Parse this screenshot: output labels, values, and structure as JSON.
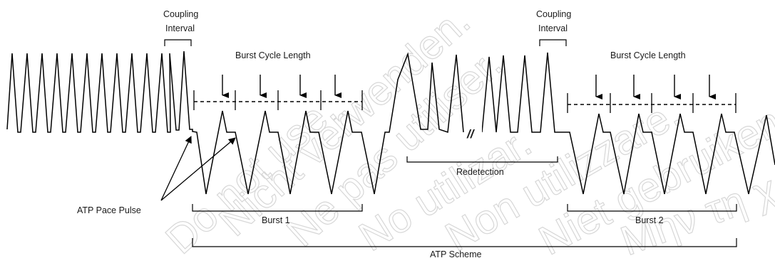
{
  "labels": {
    "coupling_interval_1_line1": "Coupling",
    "coupling_interval_1_line2": "Interval",
    "coupling_interval_2_line1": "Coupling",
    "coupling_interval_2_line2": "Interval",
    "burst_cycle_length_1": "Burst Cycle Length",
    "burst_cycle_length_2": "Burst Cycle Length",
    "atp_pace_pulse": "ATP Pace Pulse",
    "burst_1": "Burst 1",
    "burst_2": "Burst 2",
    "redetection": "Redetection",
    "atp_scheme": "ATP Scheme",
    "break_mark": "//"
  },
  "watermark": [
    "Do not use.",
    "Nicht verwenden.",
    "Ne pas utiliser.",
    "No utilizar.",
    "Non utilizzare.",
    "Niet gebruiken.",
    "Μην τη χρησιμοποιείτε."
  ],
  "colors": {
    "ink": "#000000",
    "watermark": "#d7d7d7"
  }
}
